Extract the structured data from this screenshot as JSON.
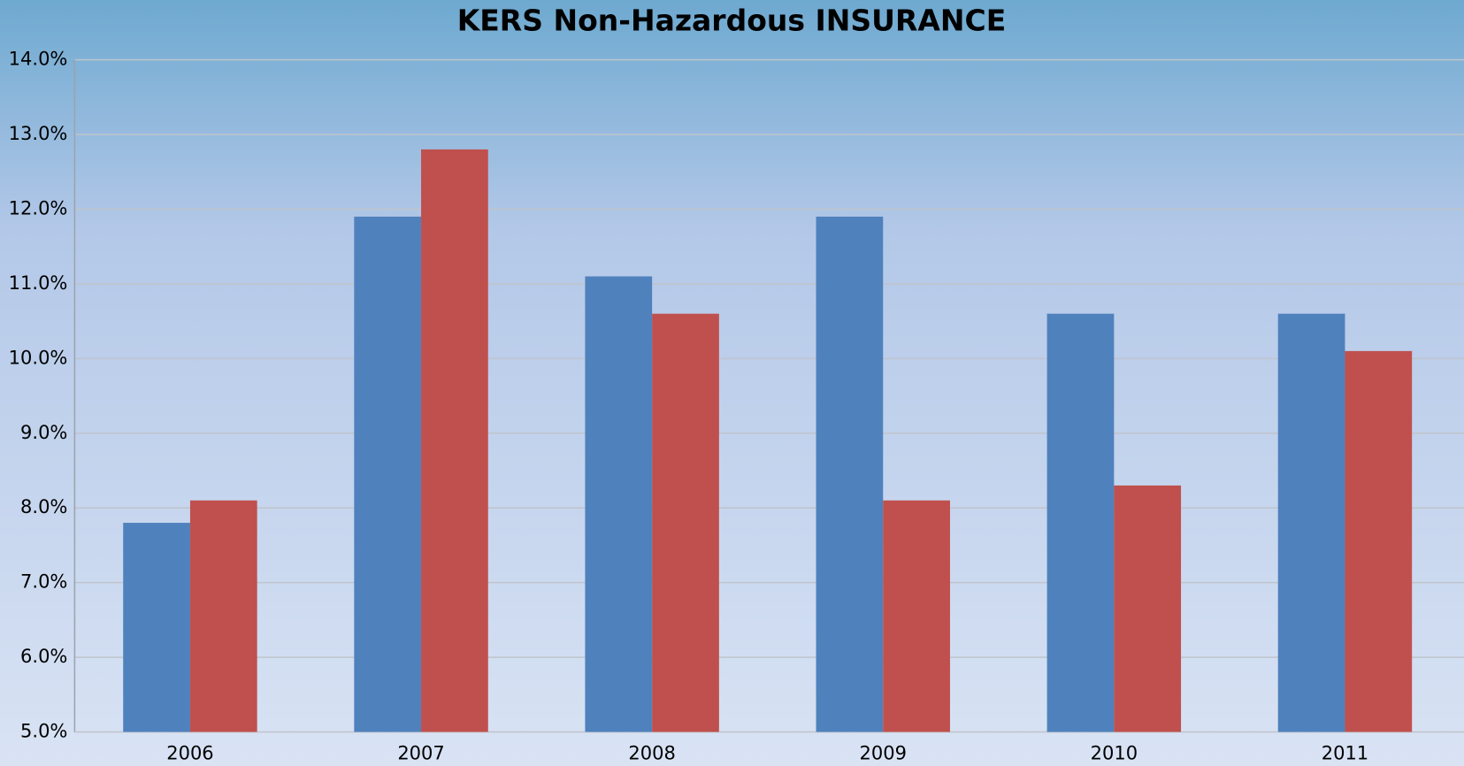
{
  "chart_data": {
    "type": "bar",
    "title": "KERS Non-Hazardous INSURANCE",
    "categories": [
      "2006",
      "2007",
      "2008",
      "2009",
      "2010",
      "2011"
    ],
    "series": [
      {
        "color": "#4f81bd",
        "values": [
          7.8,
          11.9,
          11.1,
          11.9,
          10.6,
          10.6
        ]
      },
      {
        "color": "#c0504d",
        "values": [
          8.1,
          12.8,
          10.6,
          8.1,
          8.3,
          10.1
        ]
      }
    ],
    "ylim": [
      5,
      14
    ],
    "yticks": [
      {
        "value": 5,
        "label": "5.0%"
      },
      {
        "value": 6,
        "label": "6.0%"
      },
      {
        "value": 7,
        "label": "7.0%"
      },
      {
        "value": 8,
        "label": "8.0%"
      },
      {
        "value": 9,
        "label": "9.0%"
      },
      {
        "value": 10,
        "label": "10.0%"
      },
      {
        "value": 11,
        "label": "11.0%"
      },
      {
        "value": 12,
        "label": "12.0%"
      },
      {
        "value": 13,
        "label": "13.0%"
      },
      {
        "value": 14,
        "label": "14.0%"
      }
    ],
    "grid": true
  }
}
